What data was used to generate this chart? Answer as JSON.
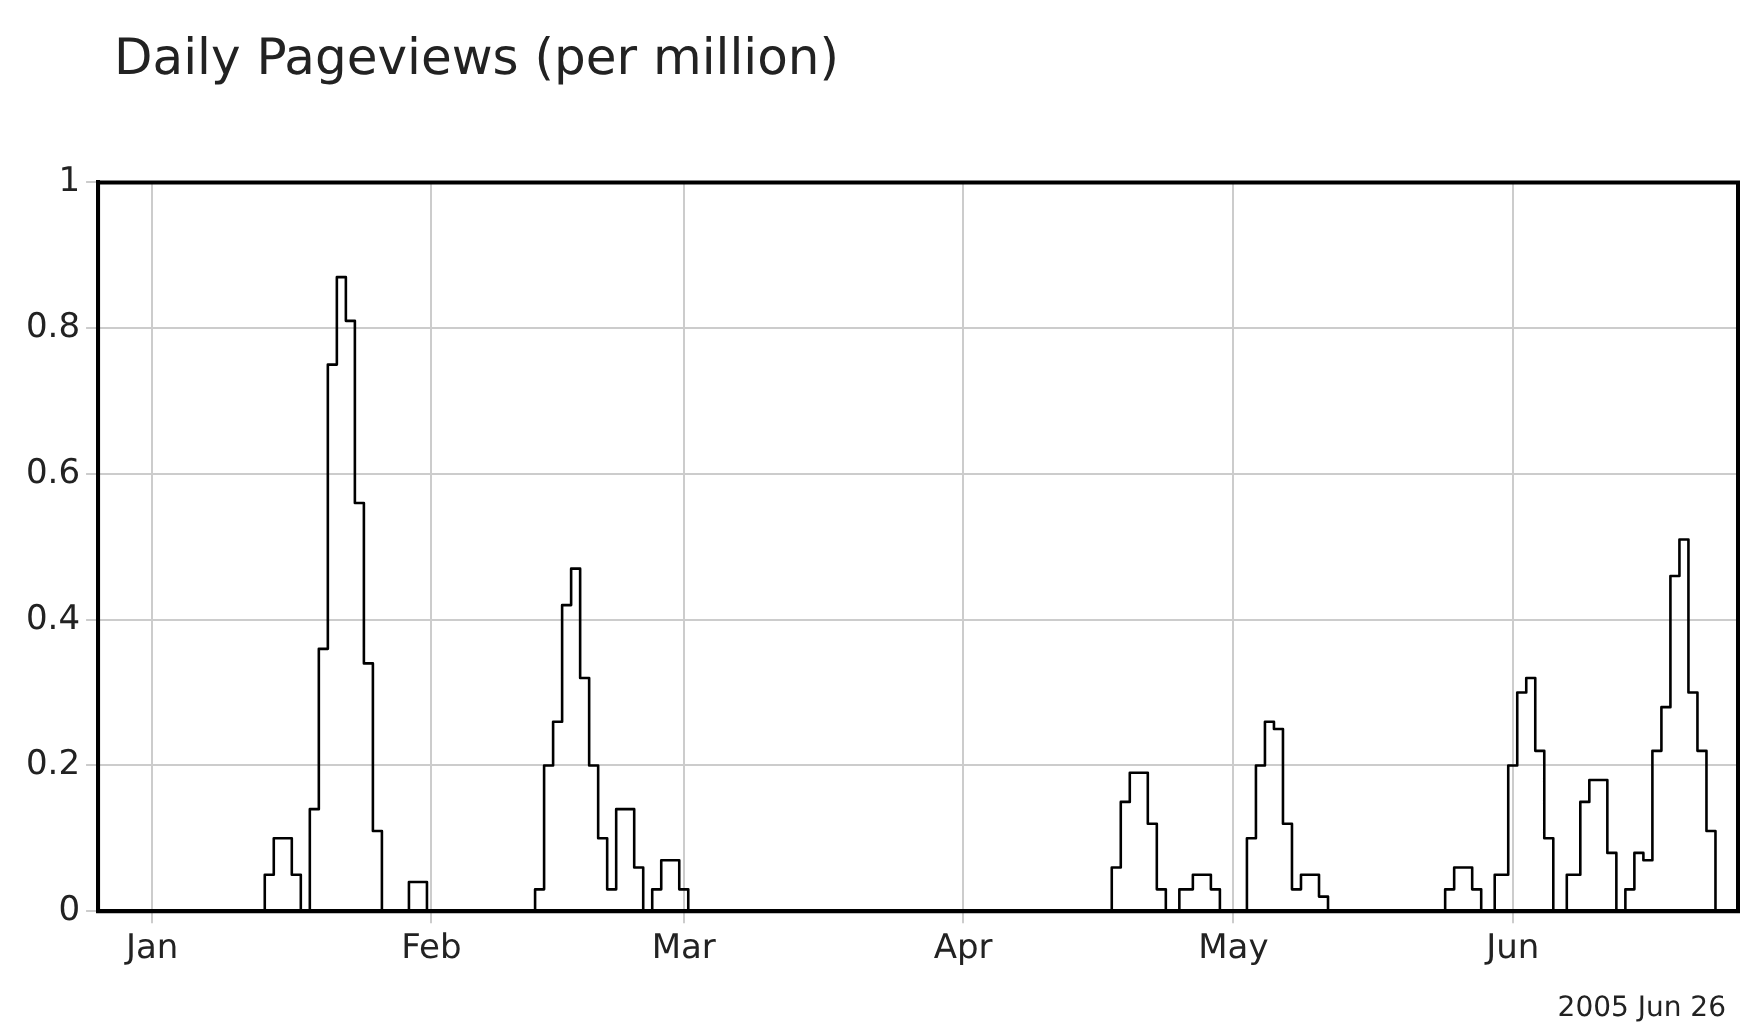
{
  "chart_data": {
    "type": "step",
    "title": "Daily Pageviews (per million)",
    "annotations": [
      "2005 Jun 26"
    ],
    "x": [
      "2004-12-26",
      "2005-01-13",
      "2005-01-14",
      "2005-01-15",
      "2005-01-16",
      "2005-01-17",
      "2005-01-18",
      "2005-01-19",
      "2005-01-20",
      "2005-01-21",
      "2005-01-22",
      "2005-01-23",
      "2005-01-24",
      "2005-01-25",
      "2005-01-26",
      "2005-01-27",
      "2005-01-29",
      "2005-01-30",
      "2005-01-31",
      "2005-02-01",
      "2005-02-12",
      "2005-02-13",
      "2005-02-14",
      "2005-02-15",
      "2005-02-16",
      "2005-02-17",
      "2005-02-18",
      "2005-02-19",
      "2005-02-20",
      "2005-02-21",
      "2005-02-22",
      "2005-02-23",
      "2005-02-24",
      "2005-02-25",
      "2005-02-26",
      "2005-02-27",
      "2005-02-28",
      "2005-03-01",
      "2005-03-02",
      "2005-04-17",
      "2005-04-18",
      "2005-04-19",
      "2005-04-20",
      "2005-04-21",
      "2005-04-22",
      "2005-04-23",
      "2005-04-24",
      "2005-04-26",
      "2005-04-27",
      "2005-04-28",
      "2005-04-29",
      "2005-04-30",
      "2005-05-02",
      "2005-05-03",
      "2005-05-04",
      "2005-05-05",
      "2005-05-06",
      "2005-05-07",
      "2005-05-08",
      "2005-05-09",
      "2005-05-10",
      "2005-05-11",
      "2005-05-12",
      "2005-05-24",
      "2005-05-25",
      "2005-05-26",
      "2005-05-27",
      "2005-05-28",
      "2005-05-29",
      "2005-05-31",
      "2005-06-01",
      "2005-06-02",
      "2005-06-03",
      "2005-06-04",
      "2005-06-05",
      "2005-06-06",
      "2005-06-08",
      "2005-06-09",
      "2005-06-10",
      "2005-06-11",
      "2005-06-12",
      "2005-06-13",
      "2005-06-14",
      "2005-06-15",
      "2005-06-16",
      "2005-06-17",
      "2005-06-18",
      "2005-06-19",
      "2005-06-20",
      "2005-06-21",
      "2005-06-22",
      "2005-06-23",
      "2005-06-24"
    ],
    "series": [
      {
        "color": "#000000",
        "values": [
          0,
          0,
          0.05,
          0.1,
          0.1,
          0.05,
          0,
          0.14,
          0.36,
          0.75,
          0.87,
          0.81,
          0.56,
          0.34,
          0.11,
          0,
          0,
          0.04,
          0.04,
          0,
          0,
          0.03,
          0.2,
          0.26,
          0.42,
          0.47,
          0.32,
          0.2,
          0.1,
          0.03,
          0.14,
          0.14,
          0.06,
          0,
          0.03,
          0.07,
          0.07,
          0.03,
          0,
          0,
          0.06,
          0.15,
          0.19,
          0.19,
          0.12,
          0.03,
          0,
          0.03,
          0.05,
          0.05,
          0.03,
          0,
          0,
          0.1,
          0.2,
          0.26,
          0.25,
          0.12,
          0.03,
          0.05,
          0.05,
          0.02,
          0,
          0,
          0.03,
          0.06,
          0.06,
          0.03,
          0,
          0.05,
          0.2,
          0.3,
          0.32,
          0.22,
          0.1,
          0,
          0.05,
          0.15,
          0.18,
          0.18,
          0.08,
          0,
          0.03,
          0.08,
          0.07,
          0.22,
          0.28,
          0.46,
          0.51,
          0.3,
          0.22,
          0.11,
          0
        ]
      }
    ],
    "xlim": [
      "2004-12-26",
      "2005-06-26"
    ],
    "xticks": [
      {
        "value": "2005-01-01",
        "label": "Jan"
      },
      {
        "value": "2005-02-01",
        "label": "Feb"
      },
      {
        "value": "2005-03-01",
        "label": "Mar"
      },
      {
        "value": "2005-04-01",
        "label": "Apr"
      },
      {
        "value": "2005-05-01",
        "label": "May"
      },
      {
        "value": "2005-06-01",
        "label": "Jun"
      }
    ],
    "ylim": [
      0,
      1
    ],
    "yticks": [
      0,
      0.2,
      0.4,
      0.6,
      0.8,
      1
    ],
    "grid": true,
    "legend": false,
    "marker": "none",
    "line_style": "solid"
  }
}
